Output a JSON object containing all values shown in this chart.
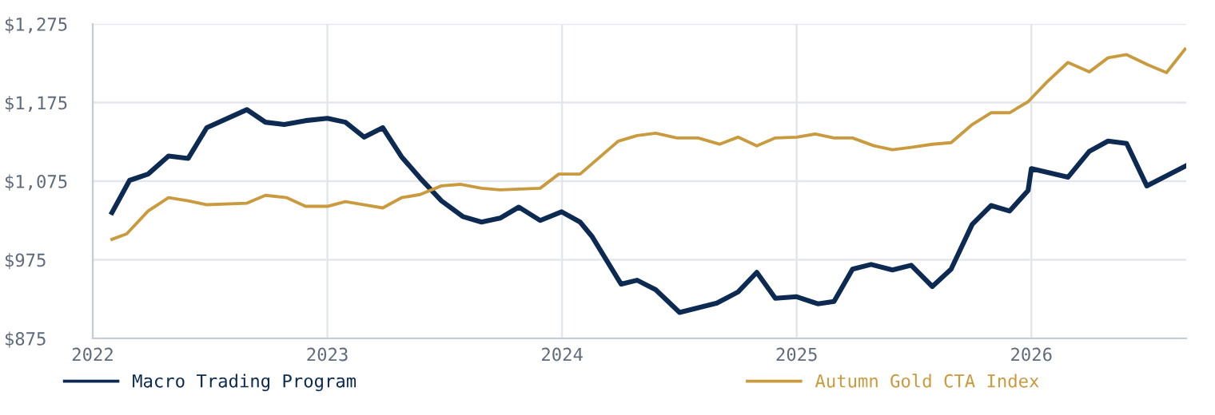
{
  "chart_data": {
    "type": "line",
    "xlim": [
      2022,
      2026.66
    ],
    "xticks": [
      2022,
      2023,
      2024,
      2025,
      2026
    ],
    "ylim": [
      875,
      1275
    ],
    "yticks": [
      {
        "value": 875,
        "label": "$875"
      },
      {
        "value": 975,
        "label": "$975"
      },
      {
        "value": 1075,
        "label": "$1,075"
      },
      {
        "value": 1175,
        "label": "$1,175"
      },
      {
        "value": 1275,
        "label": "$1,275"
      }
    ],
    "grid": true,
    "legend": "bottom",
    "marker": "none",
    "line_style": "solid",
    "series": [
      {
        "name": "Macro Trading Program",
        "color": "#0d2b52",
        "x": [
          2022.082,
          2022.157,
          2022.236,
          2022.323,
          2022.407,
          2022.486,
          2022.657,
          2022.736,
          2022.816,
          2022.907,
          2023.0,
          2023.077,
          2023.157,
          2023.236,
          2023.316,
          2023.395,
          2023.486,
          2023.577,
          2023.657,
          2023.736,
          2023.816,
          2023.907,
          2023.998,
          2024.077,
          2024.127,
          2024.252,
          2024.32,
          2024.399,
          2024.501,
          2024.66,
          2024.75,
          2024.83,
          2024.909,
          2025.0,
          2025.09,
          2025.159,
          2025.238,
          2025.317,
          2025.408,
          2025.488,
          2025.578,
          2025.658,
          2025.748,
          2025.828,
          2025.907,
          2025.986,
          2026.0,
          2026.156,
          2026.247,
          2026.327,
          2026.406,
          2026.492,
          2026.655
        ],
        "values": [
          1035,
          1076,
          1084,
          1107,
          1104,
          1143,
          1166,
          1150,
          1147,
          1152,
          1155,
          1150,
          1131,
          1143,
          1106,
          1079,
          1050,
          1030,
          1023,
          1028,
          1042,
          1025,
          1036,
          1023,
          1005,
          944,
          949,
          937,
          908,
          920,
          934,
          959,
          926,
          928,
          919,
          922,
          963,
          969,
          962,
          968,
          941,
          963,
          1020,
          1044,
          1037,
          1063,
          1091,
          1080,
          1113,
          1126,
          1123,
          1069,
          1094
        ]
      },
      {
        "name": "Autumn Gold CTA Index",
        "color": "#c99a3e",
        "x": [
          2022.082,
          2022.145,
          2022.236,
          2022.323,
          2022.407,
          2022.486,
          2022.657,
          2022.736,
          2022.827,
          2022.907,
          2023.0,
          2023.077,
          2023.157,
          2023.236,
          2023.316,
          2023.395,
          2023.486,
          2023.566,
          2023.657,
          2023.736,
          2023.907,
          2023.986,
          2024.077,
          2024.24,
          2024.32,
          2024.399,
          2024.49,
          2024.58,
          2024.671,
          2024.75,
          2024.83,
          2024.909,
          2025.0,
          2025.079,
          2025.159,
          2025.238,
          2025.329,
          2025.408,
          2025.488,
          2025.578,
          2025.658,
          2025.748,
          2025.828,
          2025.907,
          2025.986,
          2026.066,
          2026.156,
          2026.247,
          2026.327,
          2026.406,
          2026.497,
          2026.576,
          2026.655
        ],
        "values": [
          1001,
          1008,
          1037,
          1054,
          1050,
          1045,
          1047,
          1057,
          1054,
          1043,
          1043,
          1049,
          1045,
          1041,
          1054,
          1058,
          1069,
          1071,
          1066,
          1064,
          1066,
          1084,
          1084,
          1126,
          1133,
          1136,
          1130,
          1130,
          1122,
          1131,
          1120,
          1130,
          1131,
          1135,
          1130,
          1130,
          1120,
          1115,
          1118,
          1122,
          1124,
          1147,
          1162,
          1162,
          1176,
          1201,
          1226,
          1214,
          1232,
          1236,
          1223,
          1213,
          1243
        ]
      }
    ]
  }
}
